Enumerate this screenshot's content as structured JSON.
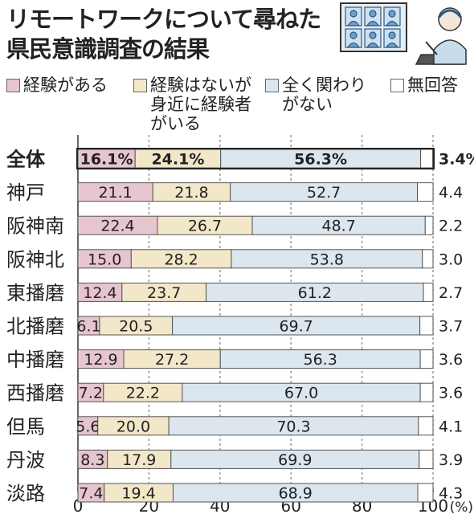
{
  "title_lines": [
    "リモートワークについて尋ねた",
    "県民意識調査の結果"
  ],
  "legend": [
    {
      "label_lines": [
        "経験がある"
      ],
      "color": "#e7c5cf"
    },
    {
      "label_lines": [
        "経験はないが",
        "身近に経験者",
        "がいる"
      ],
      "color": "#f3e7c9"
    },
    {
      "label_lines": [
        "全く関わり",
        "がない"
      ],
      "color": "#dce6ef"
    },
    {
      "label_lines": [
        "無回答"
      ],
      "color": "#ffffff"
    }
  ],
  "chart_data": {
    "type": "bar",
    "orientation": "horizontal",
    "stacked": true,
    "categories": [
      "全体",
      "神戸",
      "阪神南",
      "阪神北",
      "東播磨",
      "北播磨",
      "中播磨",
      "西播磨",
      "但馬",
      "丹波",
      "淡路"
    ],
    "series": [
      {
        "name": "経験がある",
        "values": [
          16.1,
          21.1,
          22.4,
          15.0,
          12.4,
          6.1,
          12.9,
          7.2,
          5.6,
          8.3,
          7.4
        ],
        "labels": [
          "16.1%",
          "21.1",
          "22.4",
          "15.0",
          "12.4",
          "6.1",
          "12.9",
          "7.2",
          "5.6",
          "8.3",
          "7.4"
        ]
      },
      {
        "name": "経験はないが身近に経験者がいる",
        "values": [
          24.1,
          21.8,
          26.7,
          28.2,
          23.7,
          20.5,
          27.2,
          22.2,
          20.0,
          17.9,
          19.4
        ],
        "labels": [
          "24.1%",
          "21.8",
          "26.7",
          "28.2",
          "23.7",
          "20.5",
          "27.2",
          "22.2",
          "20.0",
          "17.9",
          "19.4"
        ]
      },
      {
        "name": "全く関わりがない",
        "values": [
          56.3,
          52.7,
          48.7,
          53.8,
          61.2,
          69.7,
          56.3,
          67.0,
          70.3,
          69.9,
          68.9
        ],
        "labels": [
          "56.3%",
          "52.7",
          "48.7",
          "53.8",
          "61.2",
          "69.7",
          "56.3",
          "67.0",
          "70.3",
          "69.9",
          "68.9"
        ]
      },
      {
        "name": "無回答",
        "values": [
          3.4,
          4.4,
          2.2,
          3.0,
          2.7,
          3.7,
          3.6,
          3.6,
          4.1,
          3.9,
          4.3
        ],
        "labels": [
          "3.4%",
          "4.4",
          "2.2",
          "3.0",
          "2.7",
          "3.7",
          "3.6",
          "3.6",
          "4.1",
          "3.9",
          "4.3"
        ]
      }
    ],
    "xlim": [
      0,
      100
    ],
    "xticks": [
      0,
      20,
      40,
      60,
      80,
      100
    ],
    "xtick_labels": [
      "0",
      "20",
      "40",
      "60",
      "80",
      "100"
    ],
    "x_unit": "(%)",
    "grid": true
  }
}
